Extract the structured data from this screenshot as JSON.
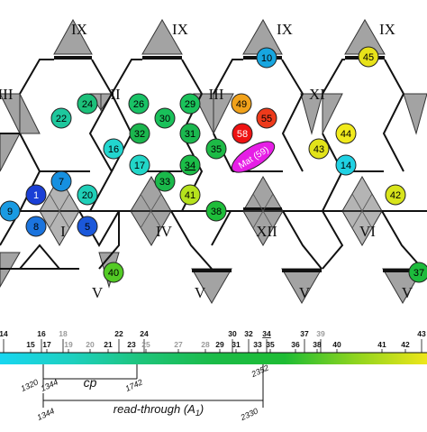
{
  "roman_labels": [
    {
      "id": "r-ix-1",
      "text": "IX"
    },
    {
      "id": "r-ix-2",
      "text": "IX"
    },
    {
      "id": "r-ix-3",
      "text": "IX"
    },
    {
      "id": "r-ix-4",
      "text": "IX"
    },
    {
      "id": "r-iii-1",
      "text": "III"
    },
    {
      "id": "r-ii",
      "text": "II"
    },
    {
      "id": "r-iii-2",
      "text": "III"
    },
    {
      "id": "r-xi",
      "text": "XI"
    },
    {
      "id": "r-i",
      "text": "I"
    },
    {
      "id": "r-iv",
      "text": "IV"
    },
    {
      "id": "r-xii",
      "text": "XII"
    },
    {
      "id": "r-vi",
      "text": "VI"
    },
    {
      "id": "r-v-1",
      "text": "V"
    },
    {
      "id": "r-v-2",
      "text": "V"
    },
    {
      "id": "r-v-3",
      "text": "V"
    },
    {
      "id": "r-v-4",
      "text": "V"
    }
  ],
  "markers": [
    {
      "label": "10",
      "color": "#17a6e0",
      "text_color": "#000000"
    },
    {
      "label": "45",
      "color": "#e8e21a",
      "text_color": "#000000"
    },
    {
      "label": "22",
      "color": "#1ec79d",
      "text_color": "#000000"
    },
    {
      "label": "24",
      "color": "#1cc07a",
      "text_color": "#000000"
    },
    {
      "label": "26",
      "color": "#19c266",
      "text_color": "#000000"
    },
    {
      "label": "30",
      "color": "#19c15a",
      "text_color": "#000000"
    },
    {
      "label": "29",
      "color": "#1bc25b",
      "text_color": "#000000"
    },
    {
      "label": "49",
      "color": "#f1a21b",
      "text_color": "#000000"
    },
    {
      "label": "55",
      "color": "#ee3a1b",
      "text_color": "#000000"
    },
    {
      "label": "44",
      "color": "#f1ea1c",
      "text_color": "#000000"
    },
    {
      "label": "16",
      "color": "#22d6cf",
      "text_color": "#000000"
    },
    {
      "label": "32",
      "color": "#1bb64e",
      "text_color": "#000000"
    },
    {
      "label": "31",
      "color": "#1bb84f",
      "text_color": "#000000"
    },
    {
      "label": "58",
      "color": "#ee1212",
      "text_color": "#ffffff"
    },
    {
      "label": "35",
      "color": "#1dba46",
      "text_color": "#000000"
    },
    {
      "label": "43",
      "color": "#e2e31a",
      "text_color": "#000000"
    },
    {
      "label": "17",
      "color": "#22d6c8",
      "text_color": "#000000"
    },
    {
      "label": "34",
      "color": "#1bbd48",
      "text_color": "#000000",
      "underline": true
    },
    {
      "label": "14",
      "color": "#1fd1e3",
      "text_color": "#000000"
    },
    {
      "label": "7",
      "color": "#1690e0",
      "text_color": "#000000"
    },
    {
      "label": "1",
      "color": "#1a3fd6",
      "text_color": "#ffffff"
    },
    {
      "label": "20",
      "color": "#1fcfb8",
      "text_color": "#000000"
    },
    {
      "label": "33",
      "color": "#1ab94b",
      "text_color": "#000000"
    },
    {
      "label": "41",
      "color": "#b6e21d",
      "text_color": "#000000"
    },
    {
      "label": "42",
      "color": "#d8e41b",
      "text_color": "#000000"
    },
    {
      "label": "9",
      "color": "#1a9be2",
      "text_color": "#000000"
    },
    {
      "label": "8",
      "color": "#1b74de",
      "text_color": "#000000"
    },
    {
      "label": "5",
      "color": "#1b58da",
      "text_color": "#000000"
    },
    {
      "label": "38",
      "color": "#1ebd3a",
      "text_color": "#000000"
    },
    {
      "label": "40",
      "color": "#53cb25",
      "text_color": "#000000"
    },
    {
      "label": "37",
      "color": "#1dbb3c",
      "text_color": "#000000"
    }
  ],
  "mat_label": {
    "text": "Mat (59)",
    "color": "#e61ee6"
  },
  "scale": {
    "upper_ticks": [
      {
        "text": "14",
        "gray": false
      },
      {
        "text": "16",
        "gray": false
      },
      {
        "text": "18",
        "gray": true
      },
      {
        "text": "22",
        "gray": false
      },
      {
        "text": "24",
        "gray": false
      },
      {
        "text": "30",
        "gray": false
      },
      {
        "text": "32",
        "gray": false
      },
      {
        "text": "34",
        "gray": false,
        "underline": true
      },
      {
        "text": "37",
        "gray": false
      },
      {
        "text": "39",
        "gray": true
      },
      {
        "text": "43",
        "gray": false
      }
    ],
    "lower_ticks": [
      {
        "text": "15",
        "gray": false
      },
      {
        "text": "17",
        "gray": false
      },
      {
        "text": "19",
        "gray": true
      },
      {
        "text": "20",
        "gray": true
      },
      {
        "text": "21",
        "gray": false
      },
      {
        "text": "23",
        "gray": false
      },
      {
        "text": "25",
        "gray": true
      },
      {
        "text": "27",
        "gray": true
      },
      {
        "text": "28",
        "gray": true
      },
      {
        "text": "29",
        "gray": false
      },
      {
        "text": "31",
        "gray": false
      },
      {
        "text": "33",
        "gray": false
      },
      {
        "text": "35",
        "gray": false
      },
      {
        "text": "36",
        "gray": false
      },
      {
        "text": "38",
        "gray": false
      },
      {
        "text": "40",
        "gray": false
      },
      {
        "text": "41",
        "gray": false
      },
      {
        "text": "42",
        "gray": false
      }
    ],
    "gradient": [
      "#18d6f0",
      "#1ed0c0",
      "#1ec47a",
      "#1bbb48",
      "#1ebc34",
      "#8fd41f",
      "#eee61a"
    ],
    "residues": {
      "r1320": "1320",
      "r1344a": "1344",
      "r1742": "1742",
      "r2352": "2352",
      "r1344b": "1344",
      "r2330": "2330"
    },
    "cp_label": "cp",
    "readthrough_main": "read-through (A",
    "readthrough_sub": "1",
    "readthrough_close": ")"
  }
}
